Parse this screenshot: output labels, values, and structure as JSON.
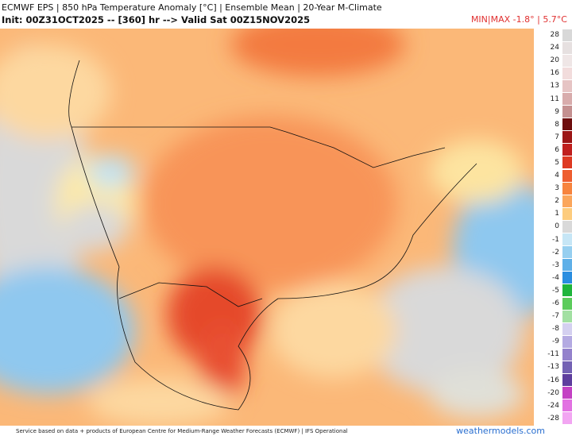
{
  "header": {
    "line1": "ECMWF EPS | 850 hPa Temperature Anomaly [°C] | Ensemble Mean | 20-Year M-Climate",
    "line2": "Init: 00Z31OCT2025 -- [360] hr --> Valid Sat 00Z15NOV2025",
    "minmax": "MIN|MAX -1.8° | 5.7°C"
  },
  "legend": [
    {
      "label": "28",
      "color": "#d8d8d8"
    },
    {
      "label": "24",
      "color": "#e6e0e0"
    },
    {
      "label": "20",
      "color": "#efe6e6"
    },
    {
      "label": "16",
      "color": "#f2dcdc"
    },
    {
      "label": "13",
      "color": "#e6c4c4"
    },
    {
      "label": "11",
      "color": "#d8acac"
    },
    {
      "label": "9",
      "color": "#c49090"
    },
    {
      "label": "8",
      "color": "#6e0e0e"
    },
    {
      "label": "7",
      "color": "#9c1616"
    },
    {
      "label": "6",
      "color": "#c0201e"
    },
    {
      "label": "5",
      "color": "#de3a22"
    },
    {
      "label": "4",
      "color": "#ee5e30"
    },
    {
      "label": "3",
      "color": "#f7843e"
    },
    {
      "label": "2",
      "color": "#fba65c"
    },
    {
      "label": "1",
      "color": "#fdcc7e"
    },
    {
      "label": "0",
      "color": "#d9d9d9"
    },
    {
      "label": "-1",
      "color": "#c6e6f6"
    },
    {
      "label": "-2",
      "color": "#96cff0"
    },
    {
      "label": "-3",
      "color": "#5fb0e8"
    },
    {
      "label": "-4",
      "color": "#2a8ee0"
    },
    {
      "label": "-5",
      "color": "#1fb53c"
    },
    {
      "label": "-6",
      "color": "#5ccc5c"
    },
    {
      "label": "-7",
      "color": "#a2e0a2"
    },
    {
      "label": "-8",
      "color": "#d4d0f0"
    },
    {
      "label": "-9",
      "color": "#b4aae2"
    },
    {
      "label": "-11",
      "color": "#9482cc"
    },
    {
      "label": "-13",
      "color": "#7462b4"
    },
    {
      "label": "-16",
      "color": "#5e3e9e"
    },
    {
      "label": "-20",
      "color": "#c442c4"
    },
    {
      "label": "-24",
      "color": "#e272e2"
    },
    {
      "label": "-28",
      "color": "#f2a6f2"
    }
  ],
  "footer": {
    "credit": "Service based on data + products of European Centre for Medium-Range Weather Forecasts (ECMWF) | IFS Operational",
    "site": "weathermodels.com"
  }
}
